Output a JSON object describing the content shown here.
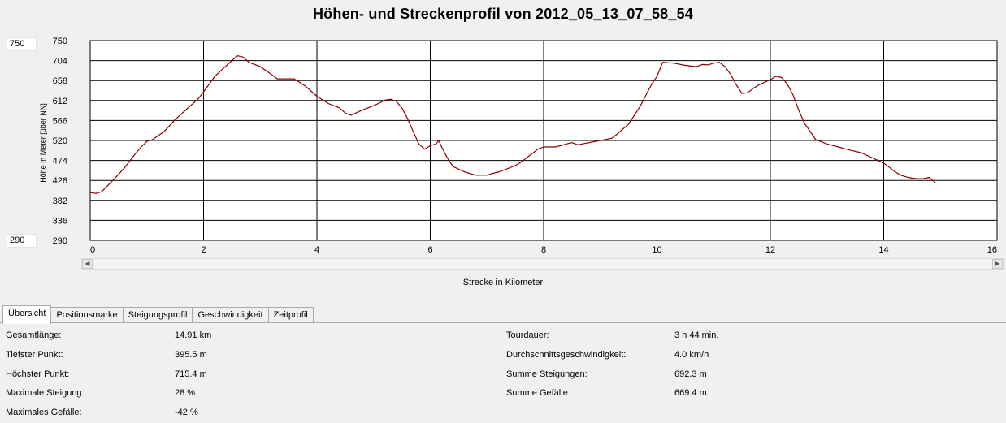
{
  "title": "Höhen- und Streckenprofil von 2012_05_13_07_58_54",
  "ylim_boxes": {
    "max": "750",
    "min": "290"
  },
  "chart_data": {
    "type": "line",
    "title": "Höhen- und Streckenprofil von 2012_05_13_07_58_54",
    "xlabel": "Strecke in Kilometer",
    "ylabel": "Höhe in Meter [über NN]",
    "xlim": [
      0,
      16
    ],
    "ylim": [
      290,
      750
    ],
    "x_ticks": [
      "0",
      "2",
      "4",
      "6",
      "8",
      "10",
      "12",
      "14",
      "16"
    ],
    "y_ticks": [
      "750",
      "704",
      "658",
      "612",
      "566",
      "520",
      "474",
      "428",
      "382",
      "336",
      "290"
    ],
    "grid": true,
    "line_color": "#8b0000",
    "series": [
      {
        "x": [
          0,
          0.1,
          0.2,
          0.4,
          0.6,
          0.8,
          0.9,
          1.0,
          1.1,
          1.3,
          1.5,
          1.7,
          1.9,
          2.0,
          2.1,
          2.2,
          2.3,
          2.45,
          2.55,
          2.6,
          2.7,
          2.8,
          3.0,
          3.2,
          3.3,
          3.6,
          3.8,
          4.0,
          4.2,
          4.4,
          4.5,
          4.6,
          4.8,
          5.0,
          5.1,
          5.2,
          5.3,
          5.4,
          5.5,
          5.6,
          5.7,
          5.8,
          5.9,
          6.0,
          6.1,
          6.15,
          6.2,
          6.3,
          6.4,
          6.6,
          6.8,
          6.9,
          7.0,
          7.1,
          7.2,
          7.3,
          7.5,
          7.6,
          7.7,
          7.8,
          7.9,
          8.0,
          8.1,
          8.2,
          8.3,
          8.4,
          8.5,
          8.6,
          8.8,
          9.0,
          9.2,
          9.3,
          9.5,
          9.7,
          9.9,
          10.0,
          10.1,
          10.3,
          10.5,
          10.7,
          10.8,
          10.9,
          11.0,
          11.1,
          11.2,
          11.3,
          11.4,
          11.5,
          11.6,
          11.7,
          11.8,
          12.0,
          12.1,
          12.2,
          12.3,
          12.4,
          12.5,
          12.6,
          12.8,
          13.0,
          13.2,
          13.4,
          13.6,
          13.8,
          14.0,
          14.1,
          14.2,
          14.3,
          14.4,
          14.5,
          14.6,
          14.7,
          14.8,
          14.9,
          14.91
        ],
        "y": [
          400,
          398,
          402,
          428,
          456,
          490,
          505,
          518,
          522,
          540,
          568,
          592,
          615,
          632,
          650,
          668,
          680,
          698,
          710,
          715,
          712,
          700,
          690,
          672,
          662,
          662,
          645,
          622,
          605,
          595,
          583,
          578,
          590,
          600,
          606,
          613,
          615,
          610,
          595,
          570,
          540,
          512,
          500,
          508,
          512,
          520,
          505,
          480,
          460,
          448,
          440,
          440,
          440,
          444,
          447,
          452,
          462,
          470,
          480,
          490,
          500,
          505,
          505,
          505,
          508,
          512,
          515,
          510,
          515,
          520,
          525,
          535,
          558,
          598,
          648,
          668,
          700,
          698,
          693,
          690,
          695,
          694,
          698,
          700,
          690,
          672,
          648,
          628,
          630,
          640,
          648,
          660,
          668,
          665,
          650,
          625,
          590,
          560,
          522,
          512,
          505,
          498,
          492,
          480,
          468,
          458,
          448,
          440,
          436,
          433,
          432,
          432,
          435,
          424,
          422
        ]
      }
    ]
  },
  "tabs": [
    {
      "label": "Übersicht",
      "active": true
    },
    {
      "label": "Positionsmarke",
      "active": false
    },
    {
      "label": "Steigungsprofil",
      "active": false
    },
    {
      "label": "Geschwindigkeit",
      "active": false
    },
    {
      "label": "Zeitprofil",
      "active": false
    }
  ],
  "stats_left": [
    {
      "label": "Gesamtlänge:",
      "value": "14.91 km"
    },
    {
      "label": "Tiefster Punkt:",
      "value": "395.5 m"
    },
    {
      "label": "Höchster Punkt:",
      "value": "715.4 m"
    },
    {
      "label": "Maximale Steigung:",
      "value": "28 %"
    },
    {
      "label": "Maximales Gefälle:",
      "value": "-42 %"
    }
  ],
  "stats_right": [
    {
      "label": "Tourdauer:",
      "value": "3 h 44 min."
    },
    {
      "label": "Durchschnittsgeschwindigkeit:",
      "value": "4.0 km/h"
    },
    {
      "label": "Summe Steigungen:",
      "value": "692.3 m"
    },
    {
      "label": "Summe Gefälle:",
      "value": "669.4 m"
    }
  ]
}
